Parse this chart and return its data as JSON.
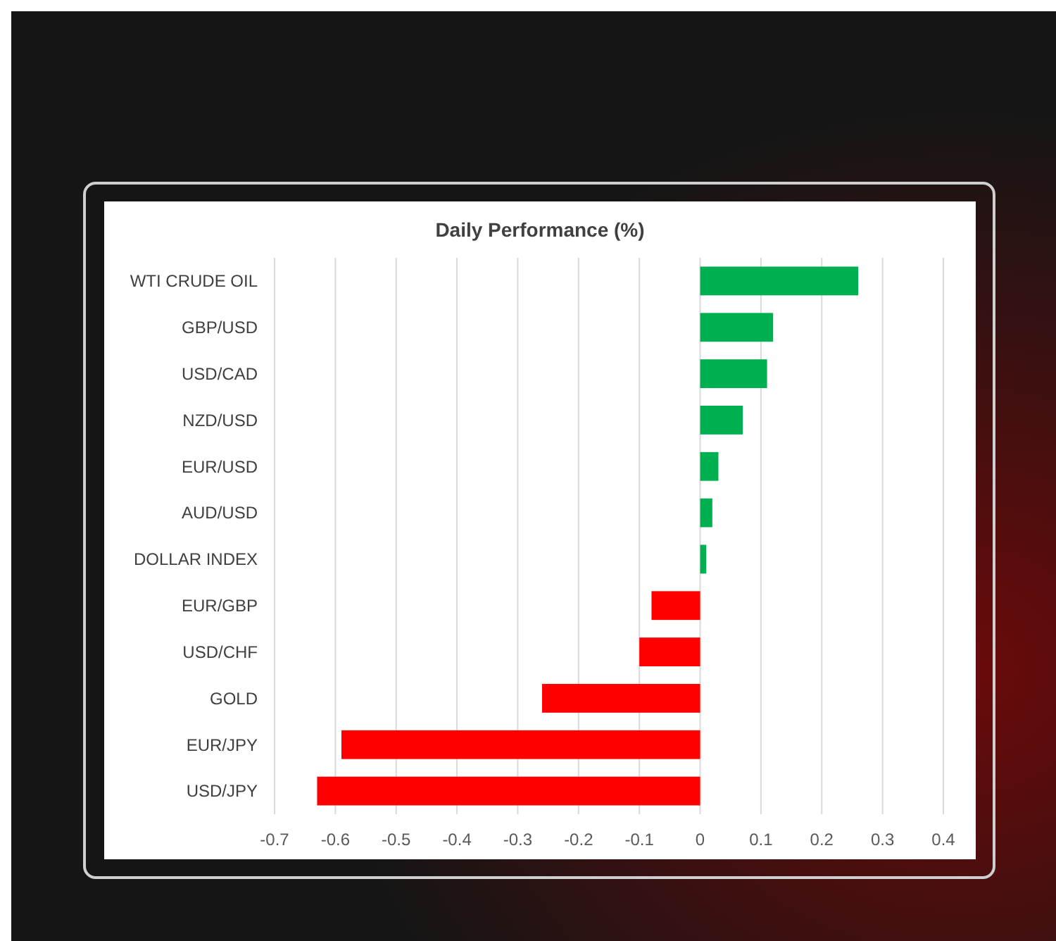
{
  "chart_data": {
    "type": "bar",
    "orientation": "horizontal",
    "title": "Daily Performance (%)",
    "categories": [
      "WTI CRUDE OIL",
      "GBP/USD",
      "USD/CAD",
      "NZD/USD",
      "EUR/USD",
      "AUD/USD",
      "DOLLAR INDEX",
      "EUR/GBP",
      "USD/CHF",
      "GOLD",
      "EUR/JPY",
      "USD/JPY"
    ],
    "values": [
      0.26,
      0.12,
      0.11,
      0.07,
      0.03,
      0.02,
      0.01,
      -0.08,
      -0.1,
      -0.26,
      -0.59,
      -0.63
    ],
    "colors": [
      "#00b050",
      "#00b050",
      "#00b050",
      "#00b050",
      "#00b050",
      "#00b050",
      "#00b050",
      "#ff0000",
      "#ff0000",
      "#ff0000",
      "#ff0000",
      "#ff0000"
    ],
    "xlim": [
      -0.7,
      0.4
    ],
    "xticks": [
      -0.7,
      -0.6,
      -0.5,
      -0.4,
      -0.3,
      -0.2,
      -0.1,
      0,
      0.1,
      0.2,
      0.3,
      0.4
    ],
    "grid": "x"
  }
}
